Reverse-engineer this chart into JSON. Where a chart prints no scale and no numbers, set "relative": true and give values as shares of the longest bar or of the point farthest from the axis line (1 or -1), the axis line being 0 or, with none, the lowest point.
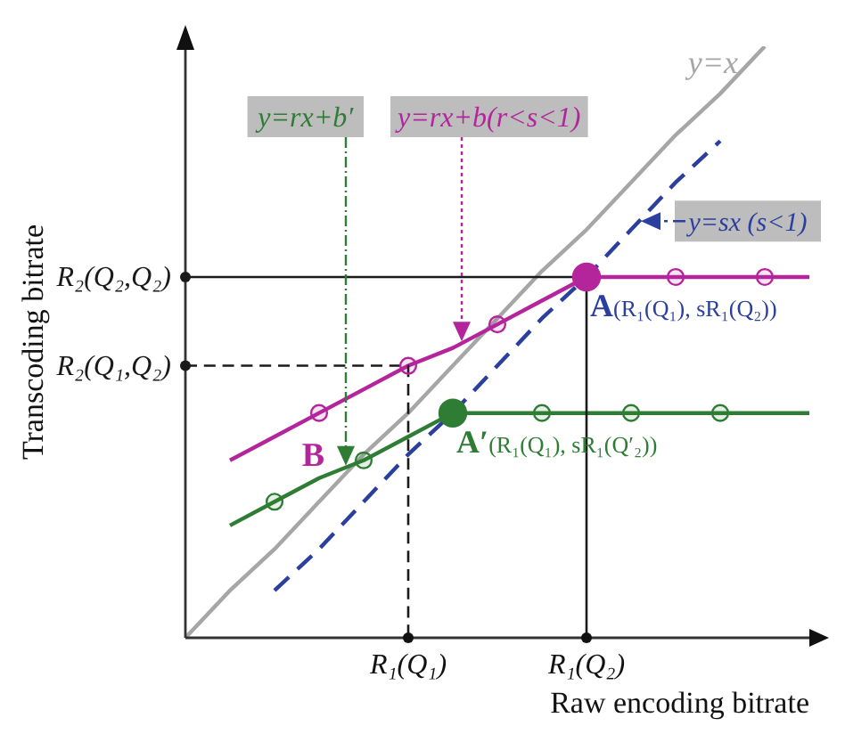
{
  "chart_data": {
    "type": "line",
    "relative": true,
    "xlabel": "Raw encoding bitrate",
    "ylabel": "Transcoding bitrate",
    "categories": [
      null,
      null,
      null,
      null,
      null,
      "R₁(Q₁)",
      null,
      null,
      null,
      "R₁(Q₂)",
      null,
      null,
      null,
      null,
      null
    ],
    "series": [
      {
        "name": "y=x",
        "color": "#a6a6a6",
        "values": [
          0,
          0.08,
          0.15,
          0.23,
          0.31,
          0.38,
          0.46,
          0.54,
          0.62,
          0.69,
          0.77,
          0.85,
          0.92,
          1,
          null
        ]
      },
      {
        "name": "y=sx (s<1)",
        "color": "#2a3f9e",
        "line_style": "dashed",
        "values": [
          null,
          null,
          0.08,
          0.15,
          0.23,
          0.31,
          0.38,
          0.46,
          0.54,
          0.61,
          0.69,
          0.77,
          0.84,
          null,
          null
        ]
      },
      {
        "name": "y=rx+b(r<s<1)",
        "color": "#b4259c",
        "values": [
          null,
          0.3,
          0.34,
          0.38,
          0.42,
          0.46,
          0.49,
          0.53,
          0.57,
          0.61,
          0.61,
          0.61,
          0.61,
          0.61,
          0.61
        ]
      },
      {
        "name": "y=rx+b′",
        "color": "#2f7d34",
        "values": [
          null,
          0.19,
          0.23,
          0.27,
          0.3,
          0.34,
          0.38,
          0.38,
          0.38,
          0.38,
          0.38,
          0.38,
          0.38,
          0.38,
          0.38
        ]
      },
      {
        "type": "step",
        "name": "R₂(Q₂,Q₂)",
        "color": "#1a1a1a",
        "values": [
          0.61,
          0.61,
          0.61,
          0.61,
          0.61,
          0.61,
          0.61,
          0.61,
          0.61,
          0,
          null,
          null,
          null,
          null,
          null
        ]
      },
      {
        "type": "step",
        "name": "R₂(Q₁,Q₂)",
        "color": "#1a1a1a",
        "line_style": "dashed",
        "values": [
          0.46,
          0.46,
          0.46,
          0.46,
          0.46,
          0,
          null,
          null,
          null,
          null,
          null,
          null,
          null,
          null,
          null
        ]
      },
      {
        "type": "bubble",
        "color": "#b4259c",
        "values": [
          null,
          null,
          null,
          0.38,
          null,
          0.46,
          null,
          0.53,
          null,
          0.61,
          null,
          0.61,
          null,
          0.61,
          null
        ],
        "sizes": [
          null,
          null,
          null,
          0.35,
          null,
          0.35,
          null,
          0.35,
          null,
          1,
          null,
          0.35,
          null,
          0.35,
          null
        ]
      },
      {
        "type": "bubble",
        "color": "#2f7d34",
        "values": [
          null,
          null,
          0.23,
          null,
          0.3,
          null,
          0.38,
          null,
          0.38,
          null,
          0.38,
          null,
          0.38,
          null,
          null
        ],
        "sizes": [
          null,
          null,
          0.35,
          null,
          0.35,
          null,
          1,
          null,
          0.35,
          null,
          0.35,
          null,
          0.35,
          null,
          null
        ]
      }
    ],
    "annotations": [
      {
        "text": "A(R₁(Q₁), sR₁(Q₂))",
        "x": "R₁(Q₂)",
        "y": 0.61
      },
      {
        "text": "A′(R₁(Q₁), sR₁(Q′₂))",
        "y": 0.38
      },
      "B"
    ]
  }
}
